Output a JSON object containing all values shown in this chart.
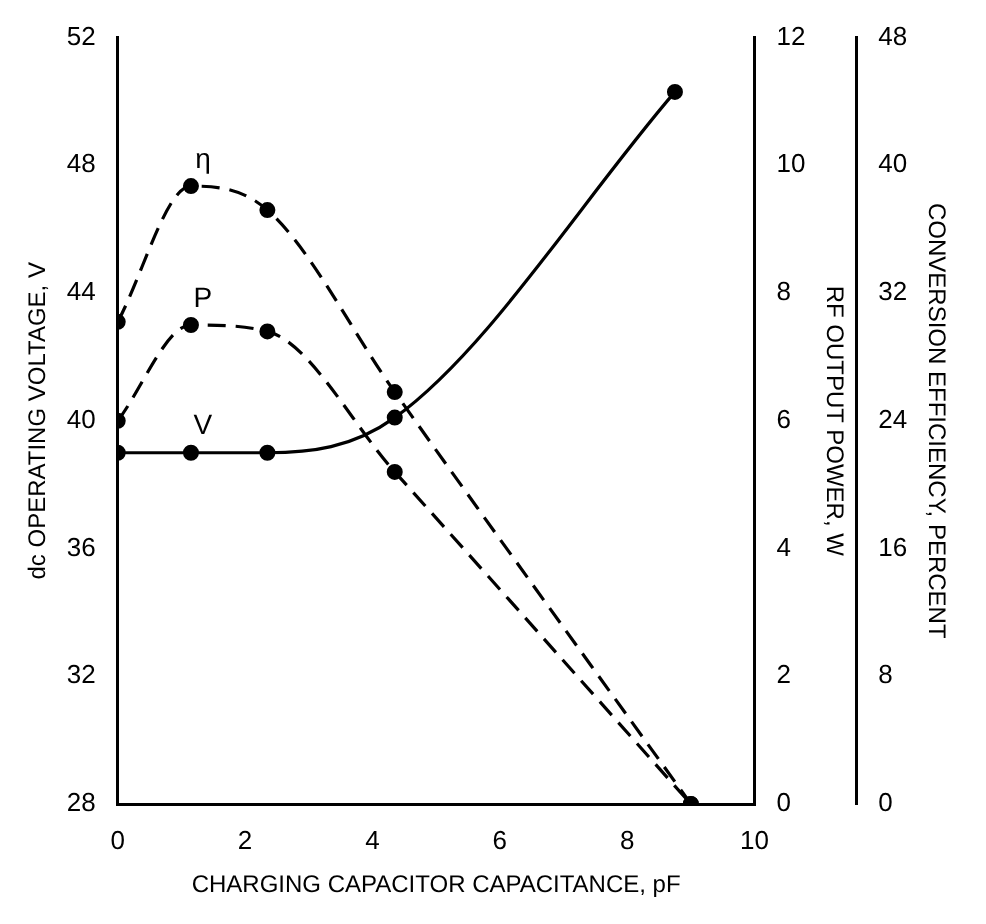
{
  "chart_data": {
    "type": "line",
    "xlabel": "CHARGING CAPACITOR CAPACITANCE, pF",
    "ylabel": "dc OPERATING VOLTAGE, V",
    "y2label": "RF OUTPUT POWER, W",
    "y3label": "CONVERSION EFFICIENCY, PERCENT",
    "xlim": [
      0,
      10
    ],
    "xticks": [
      0,
      2,
      4,
      6,
      8,
      10
    ],
    "ylim": [
      28,
      52
    ],
    "yticks": [
      28,
      32,
      36,
      40,
      44,
      48,
      52
    ],
    "y2lim": [
      0,
      12
    ],
    "y2ticks": [
      0,
      2,
      4,
      6,
      8,
      10,
      12
    ],
    "y3lim": [
      0,
      48
    ],
    "y3ticks": [
      0,
      8,
      16,
      24,
      32,
      40,
      48
    ],
    "grid": false,
    "legend": false,
    "marker": "circle",
    "series": [
      {
        "name": "V",
        "color": "#000000",
        "line_style": "solid",
        "x": [
          0,
          1.15,
          2.35,
          4.35,
          8.75
        ],
        "values": [
          39,
          39,
          39,
          40.1,
          50.3
        ]
      },
      {
        "name": "P",
        "color": "#000000",
        "line_style": "dashed",
        "axis": "y2",
        "x": [
          0,
          1.15,
          2.35,
          4.35,
          9
        ],
        "values": [
          6,
          7.5,
          7.4,
          5.2,
          0
        ]
      },
      {
        "name": "η",
        "color": "#000000",
        "line_style": "dashed",
        "axis": "y3",
        "x": [
          0,
          1.15,
          2.35,
          4.35,
          9
        ],
        "values": [
          30.2,
          38.7,
          37.2,
          25.8,
          0
        ]
      }
    ]
  }
}
